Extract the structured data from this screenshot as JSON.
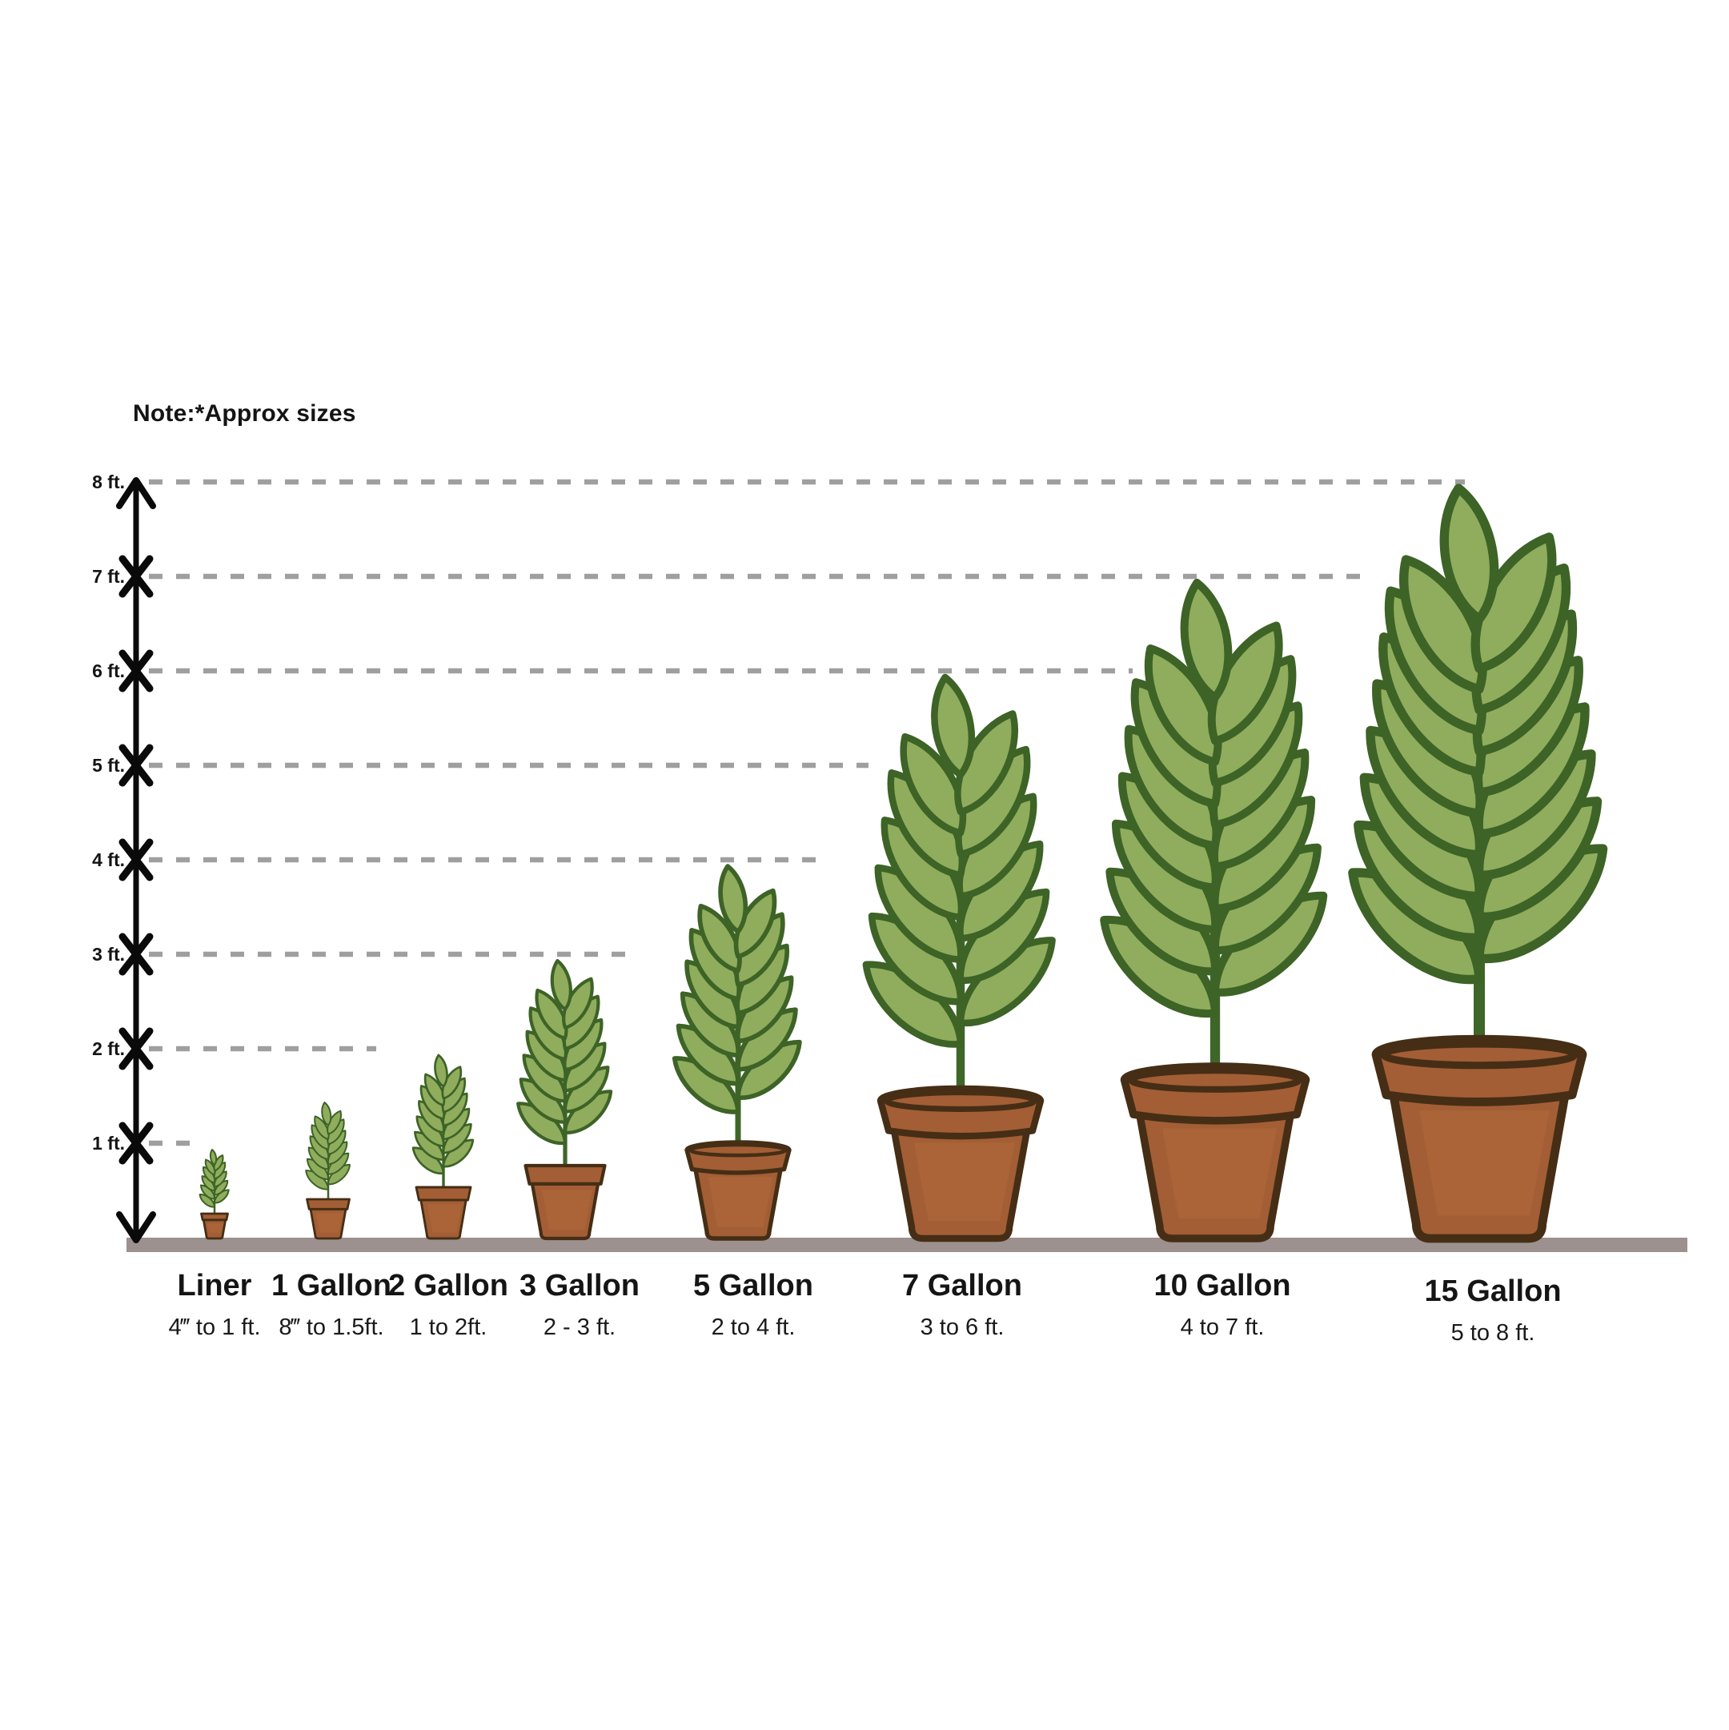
{
  "note": "Note:*Approx sizes",
  "axis": {
    "unit": "ft.",
    "tick_labels": [
      "1 ft.",
      "2 ft.",
      "3 ft.",
      "4 ft.",
      "5 ft.",
      "6 ft.",
      "7 ft.",
      "8 ft."
    ]
  },
  "items": [
    {
      "name": "Liner",
      "range": "4‴ to 1 ft.",
      "height_ft": 1
    },
    {
      "name": "1 Gallon",
      "range": "8‴ to 1.5ft.",
      "height_ft": 1.5
    },
    {
      "name": "2 Gallon",
      "range": "1 to 2ft.",
      "height_ft": 2
    },
    {
      "name": "3 Gallon",
      "range": "2 - 3 ft.",
      "height_ft": 3
    },
    {
      "name": "5 Gallon",
      "range": "2 to 4 ft.",
      "height_ft": 4
    },
    {
      "name": "7 Gallon",
      "range": "3 to 6 ft.",
      "height_ft": 6
    },
    {
      "name": "10 Gallon",
      "range": "4 to 7 ft.",
      "height_ft": 7
    },
    {
      "name": "15 Gallon",
      "range": "5 to 8 ft.",
      "height_ft": 8
    }
  ],
  "colors": {
    "leaf_fill": "#8fad5d",
    "leaf_outline": "#3d6326",
    "stem": "#3e6629",
    "pot_fill": "#a35e35",
    "pot_light": "#b1693c",
    "pot_outline": "#452e15",
    "ground": "#9c918e",
    "dash": "#9f9f9f",
    "axis": "#0a0a0a",
    "text": "#141414"
  },
  "chart_data": {
    "type": "diagram",
    "title": "Note:*Approx sizes",
    "categories": [
      "Liner",
      "1 Gallon",
      "2 Gallon",
      "3 Gallon",
      "5 Gallon",
      "7 Gallon",
      "10 Gallon",
      "15 Gallon"
    ],
    "height_ranges": [
      "4‴ to 1 ft.",
      "8‴ to 1.5ft.",
      "1 to 2ft.",
      "2 - 3 ft.",
      "2 to 4 ft.",
      "3 to 6 ft.",
      "4 to 7 ft.",
      "5 to 8 ft."
    ],
    "depicted_plant_height_ft": [
      1,
      1.5,
      2,
      3,
      4,
      6,
      7,
      8
    ],
    "axis_unit": "ft.",
    "axis_ticks_ft": [
      1,
      2,
      3,
      4,
      5,
      6,
      7,
      8
    ],
    "axis_range": [
      0,
      8
    ],
    "gridlines": "dashed horizontal per foot",
    "legend": "none"
  }
}
